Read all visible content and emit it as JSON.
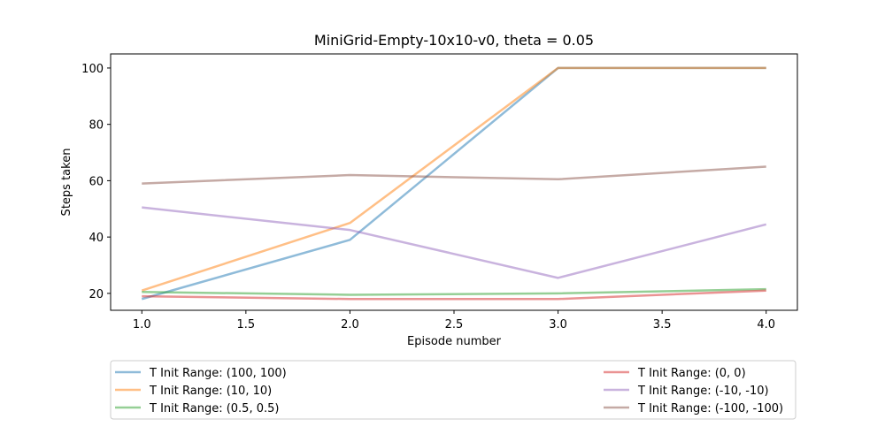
{
  "chart_data": {
    "type": "line",
    "title": "MiniGrid-Empty-10x10-v0, theta = 0.05",
    "xlabel": "Episode number",
    "ylabel": "Steps taken",
    "xlim": [
      0.85,
      4.15
    ],
    "ylim": [
      14,
      105
    ],
    "xticks": [
      1.0,
      1.5,
      2.0,
      2.5,
      3.0,
      3.5,
      4.0
    ],
    "xtick_labels": [
      "1.0",
      "1.5",
      "2.0",
      "2.5",
      "3.0",
      "3.5",
      "4.0"
    ],
    "yticks": [
      20,
      40,
      60,
      80,
      100
    ],
    "ytick_labels": [
      "20",
      "40",
      "60",
      "80",
      "100"
    ],
    "grid": false,
    "legend_placement": "below plot",
    "x": [
      1,
      2,
      3,
      4
    ],
    "series": [
      {
        "name": "T Init Range: (100, 100)",
        "color": "#1f77b4",
        "values": [
          18,
          39,
          100,
          100
        ]
      },
      {
        "name": "T Init Range: (10, 10)",
        "color": "#ff7f0e",
        "values": [
          21,
          45,
          100,
          100
        ]
      },
      {
        "name": "T Init Range: (0.5, 0.5)",
        "color": "#2ca02c",
        "values": [
          20.5,
          19.5,
          20,
          21.5
        ]
      },
      {
        "name": "T Init Range: (0, 0)",
        "color": "#d62728",
        "values": [
          19,
          18,
          18,
          21
        ]
      },
      {
        "name": "T Init Range: (-10, -10)",
        "color": "#9467bd",
        "values": [
          50.5,
          42.5,
          25.5,
          44.5
        ]
      },
      {
        "name": "T Init Range: (-100, -100)",
        "color": "#8c564b",
        "values": [
          59,
          62,
          60.5,
          65
        ]
      }
    ]
  }
}
